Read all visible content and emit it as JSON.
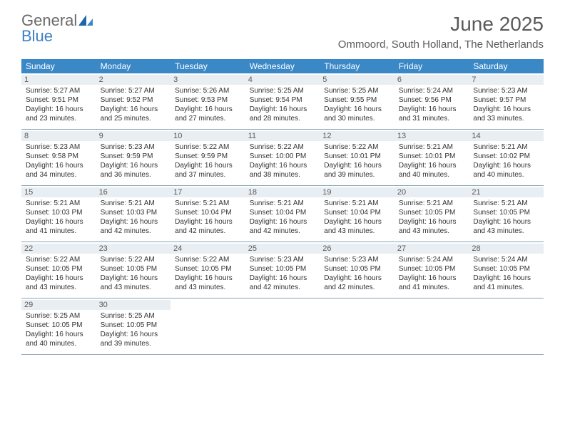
{
  "logo": {
    "general": "General",
    "blue": "Blue"
  },
  "header": {
    "title": "June 2025",
    "location": "Ommoord, South Holland, The Netherlands"
  },
  "colors": {
    "dow_bg": "#3b88c7",
    "daynum_bg": "#e9eef2",
    "border": "#8aa4b8",
    "logo_gray": "#6a6a6a",
    "logo_blue": "#3b7fc4"
  },
  "dow": [
    "Sunday",
    "Monday",
    "Tuesday",
    "Wednesday",
    "Thursday",
    "Friday",
    "Saturday"
  ],
  "weeks": [
    [
      {
        "n": "1",
        "sr": "Sunrise: 5:27 AM",
        "ss": "Sunset: 9:51 PM",
        "d1": "Daylight: 16 hours",
        "d2": "and 23 minutes."
      },
      {
        "n": "2",
        "sr": "Sunrise: 5:27 AM",
        "ss": "Sunset: 9:52 PM",
        "d1": "Daylight: 16 hours",
        "d2": "and 25 minutes."
      },
      {
        "n": "3",
        "sr": "Sunrise: 5:26 AM",
        "ss": "Sunset: 9:53 PM",
        "d1": "Daylight: 16 hours",
        "d2": "and 27 minutes."
      },
      {
        "n": "4",
        "sr": "Sunrise: 5:25 AM",
        "ss": "Sunset: 9:54 PM",
        "d1": "Daylight: 16 hours",
        "d2": "and 28 minutes."
      },
      {
        "n": "5",
        "sr": "Sunrise: 5:25 AM",
        "ss": "Sunset: 9:55 PM",
        "d1": "Daylight: 16 hours",
        "d2": "and 30 minutes."
      },
      {
        "n": "6",
        "sr": "Sunrise: 5:24 AM",
        "ss": "Sunset: 9:56 PM",
        "d1": "Daylight: 16 hours",
        "d2": "and 31 minutes."
      },
      {
        "n": "7",
        "sr": "Sunrise: 5:23 AM",
        "ss": "Sunset: 9:57 PM",
        "d1": "Daylight: 16 hours",
        "d2": "and 33 minutes."
      }
    ],
    [
      {
        "n": "8",
        "sr": "Sunrise: 5:23 AM",
        "ss": "Sunset: 9:58 PM",
        "d1": "Daylight: 16 hours",
        "d2": "and 34 minutes."
      },
      {
        "n": "9",
        "sr": "Sunrise: 5:23 AM",
        "ss": "Sunset: 9:59 PM",
        "d1": "Daylight: 16 hours",
        "d2": "and 36 minutes."
      },
      {
        "n": "10",
        "sr": "Sunrise: 5:22 AM",
        "ss": "Sunset: 9:59 PM",
        "d1": "Daylight: 16 hours",
        "d2": "and 37 minutes."
      },
      {
        "n": "11",
        "sr": "Sunrise: 5:22 AM",
        "ss": "Sunset: 10:00 PM",
        "d1": "Daylight: 16 hours",
        "d2": "and 38 minutes."
      },
      {
        "n": "12",
        "sr": "Sunrise: 5:22 AM",
        "ss": "Sunset: 10:01 PM",
        "d1": "Daylight: 16 hours",
        "d2": "and 39 minutes."
      },
      {
        "n": "13",
        "sr": "Sunrise: 5:21 AM",
        "ss": "Sunset: 10:01 PM",
        "d1": "Daylight: 16 hours",
        "d2": "and 40 minutes."
      },
      {
        "n": "14",
        "sr": "Sunrise: 5:21 AM",
        "ss": "Sunset: 10:02 PM",
        "d1": "Daylight: 16 hours",
        "d2": "and 40 minutes."
      }
    ],
    [
      {
        "n": "15",
        "sr": "Sunrise: 5:21 AM",
        "ss": "Sunset: 10:03 PM",
        "d1": "Daylight: 16 hours",
        "d2": "and 41 minutes."
      },
      {
        "n": "16",
        "sr": "Sunrise: 5:21 AM",
        "ss": "Sunset: 10:03 PM",
        "d1": "Daylight: 16 hours",
        "d2": "and 42 minutes."
      },
      {
        "n": "17",
        "sr": "Sunrise: 5:21 AM",
        "ss": "Sunset: 10:04 PM",
        "d1": "Daylight: 16 hours",
        "d2": "and 42 minutes."
      },
      {
        "n": "18",
        "sr": "Sunrise: 5:21 AM",
        "ss": "Sunset: 10:04 PM",
        "d1": "Daylight: 16 hours",
        "d2": "and 42 minutes."
      },
      {
        "n": "19",
        "sr": "Sunrise: 5:21 AM",
        "ss": "Sunset: 10:04 PM",
        "d1": "Daylight: 16 hours",
        "d2": "and 43 minutes."
      },
      {
        "n": "20",
        "sr": "Sunrise: 5:21 AM",
        "ss": "Sunset: 10:05 PM",
        "d1": "Daylight: 16 hours",
        "d2": "and 43 minutes."
      },
      {
        "n": "21",
        "sr": "Sunrise: 5:21 AM",
        "ss": "Sunset: 10:05 PM",
        "d1": "Daylight: 16 hours",
        "d2": "and 43 minutes."
      }
    ],
    [
      {
        "n": "22",
        "sr": "Sunrise: 5:22 AM",
        "ss": "Sunset: 10:05 PM",
        "d1": "Daylight: 16 hours",
        "d2": "and 43 minutes."
      },
      {
        "n": "23",
        "sr": "Sunrise: 5:22 AM",
        "ss": "Sunset: 10:05 PM",
        "d1": "Daylight: 16 hours",
        "d2": "and 43 minutes."
      },
      {
        "n": "24",
        "sr": "Sunrise: 5:22 AM",
        "ss": "Sunset: 10:05 PM",
        "d1": "Daylight: 16 hours",
        "d2": "and 43 minutes."
      },
      {
        "n": "25",
        "sr": "Sunrise: 5:23 AM",
        "ss": "Sunset: 10:05 PM",
        "d1": "Daylight: 16 hours",
        "d2": "and 42 minutes."
      },
      {
        "n": "26",
        "sr": "Sunrise: 5:23 AM",
        "ss": "Sunset: 10:05 PM",
        "d1": "Daylight: 16 hours",
        "d2": "and 42 minutes."
      },
      {
        "n": "27",
        "sr": "Sunrise: 5:24 AM",
        "ss": "Sunset: 10:05 PM",
        "d1": "Daylight: 16 hours",
        "d2": "and 41 minutes."
      },
      {
        "n": "28",
        "sr": "Sunrise: 5:24 AM",
        "ss": "Sunset: 10:05 PM",
        "d1": "Daylight: 16 hours",
        "d2": "and 41 minutes."
      }
    ],
    [
      {
        "n": "29",
        "sr": "Sunrise: 5:25 AM",
        "ss": "Sunset: 10:05 PM",
        "d1": "Daylight: 16 hours",
        "d2": "and 40 minutes."
      },
      {
        "n": "30",
        "sr": "Sunrise: 5:25 AM",
        "ss": "Sunset: 10:05 PM",
        "d1": "Daylight: 16 hours",
        "d2": "and 39 minutes."
      },
      null,
      null,
      null,
      null,
      null
    ]
  ]
}
